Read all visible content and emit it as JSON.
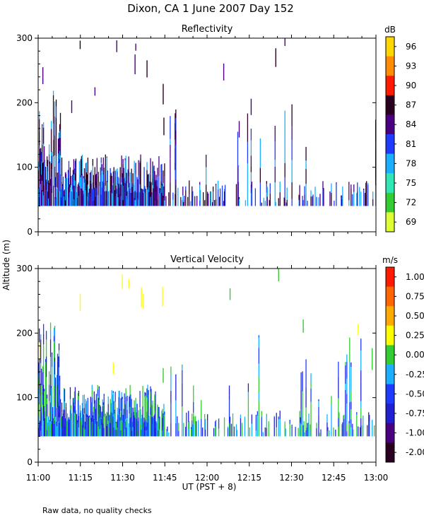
{
  "chart_data": {
    "type": "heatmap",
    "title": "Dixon, CA   1 June 2007   Day 152",
    "ylabel": "Altitude (m)",
    "xlabel": "UT  (PST + 8)",
    "xticks": [
      "11:00",
      "11:15",
      "11:30",
      "11:45",
      "12:00",
      "12:15",
      "12:30",
      "12:45",
      "13:00"
    ],
    "xrange_minutes": [
      0,
      120
    ],
    "footnote": "Raw data, no quality checks",
    "panels": [
      {
        "title": "Reflectivity",
        "unit": "dB",
        "yticks": [
          "0",
          "100",
          "200",
          "300"
        ],
        "ylim": [
          0,
          300
        ],
        "colorbar_labels": [
          "96",
          "93",
          "90",
          "87",
          "84",
          "81",
          "78",
          "75",
          "72",
          "69"
        ],
        "colors": [
          "#ffd700",
          "#ff8c00",
          "#ff1a00",
          "#2a0020",
          "#4b0082",
          "#1e3cff",
          "#1ab0ff",
          "#2fe6b4",
          "#33cc33",
          "#ddff33"
        ],
        "dense_until_min": 45,
        "main_colors": [
          "#1e3cff",
          "#4b0082",
          "#2a0020",
          "#1ab0ff"
        ]
      },
      {
        "title": "Vertical Velocity",
        "unit": "m/s",
        "yticks": [
          "0",
          "100",
          "200",
          "300"
        ],
        "ylim": [
          0,
          300
        ],
        "colorbar_labels": [
          "1.00",
          "0.75",
          "0.50",
          "0.25",
          "0.00",
          "-0.25",
          "-0.50",
          "-0.75",
          "-1.00",
          "-2.00"
        ],
        "colors": [
          "#ff1a00",
          "#ff6600",
          "#ffaa00",
          "#ffff00",
          "#33cc33",
          "#1ab0ff",
          "#1e3cff",
          "#2020d0",
          "#4b0082",
          "#2a0020"
        ],
        "dense_until_min": 45,
        "main_colors": [
          "#1e3cff",
          "#1ab0ff",
          "#33cc33",
          "#2020d0"
        ]
      }
    ]
  }
}
